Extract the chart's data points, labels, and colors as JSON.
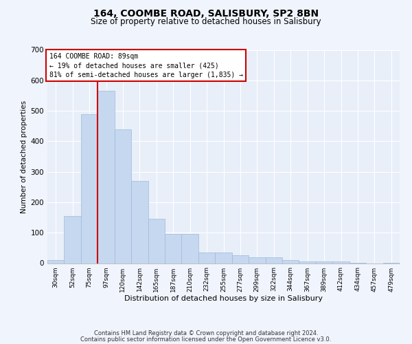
{
  "title": "164, COOMBE ROAD, SALISBURY, SP2 8BN",
  "subtitle": "Size of property relative to detached houses in Salisbury",
  "xlabel": "Distribution of detached houses by size in Salisbury",
  "ylabel": "Number of detached properties",
  "annotation_line1": "164 COOMBE ROAD: 89sqm",
  "annotation_line2": "← 19% of detached houses are smaller (425)",
  "annotation_line3": "81% of semi-detached houses are larger (1,835) →",
  "footer_line1": "Contains HM Land Registry data © Crown copyright and database right 2024.",
  "footer_line2": "Contains public sector information licensed under the Open Government Licence v3.0.",
  "bin_labels": [
    "30sqm",
    "52sqm",
    "75sqm",
    "97sqm",
    "120sqm",
    "142sqm",
    "165sqm",
    "187sqm",
    "210sqm",
    "232sqm",
    "255sqm",
    "277sqm",
    "299sqm",
    "322sqm",
    "344sqm",
    "367sqm",
    "389sqm",
    "412sqm",
    "434sqm",
    "457sqm",
    "479sqm"
  ],
  "bar_values": [
    10,
    155,
    490,
    565,
    440,
    270,
    145,
    95,
    95,
    35,
    35,
    25,
    20,
    20,
    10,
    5,
    5,
    5,
    2,
    0,
    2
  ],
  "bar_color": "#c5d8f0",
  "bar_edge_color": "#a0b8d8",
  "vline_color": "#cc0000",
  "ylim": [
    0,
    700
  ],
  "yticks": [
    0,
    100,
    200,
    300,
    400,
    500,
    600,
    700
  ],
  "background_color": "#e8eff9",
  "grid_color": "#ffffff",
  "fig_background": "#f0f4fc"
}
